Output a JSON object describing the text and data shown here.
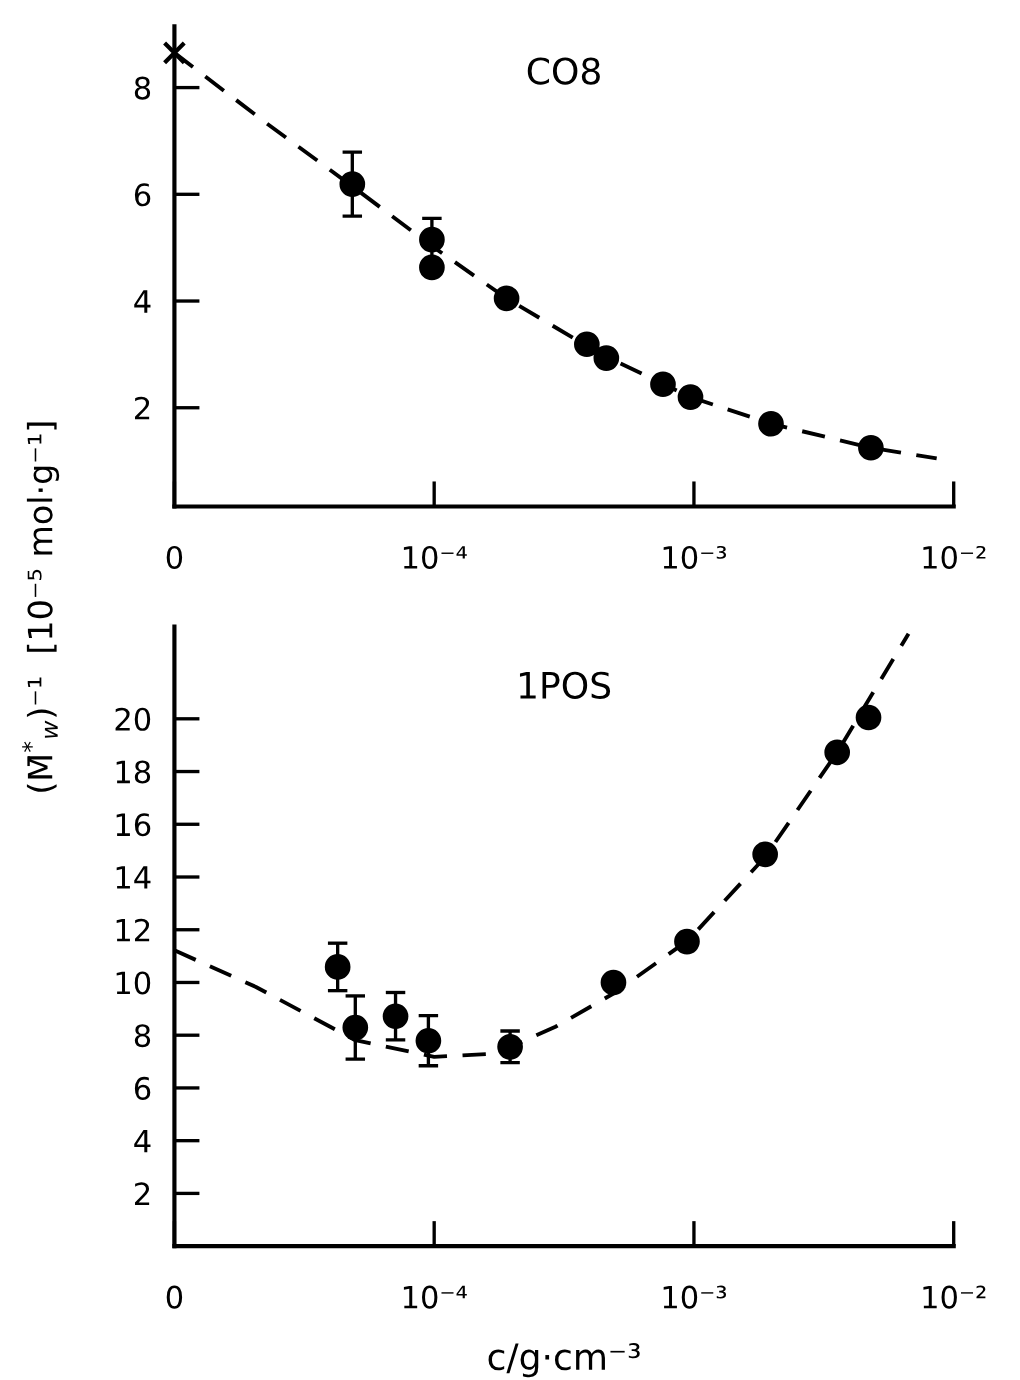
{
  "chart_data": [
    {
      "type": "scatter",
      "title": "CO8",
      "ylabel": "(M̄$^{*}$$_{w}$)⁻¹  [10⁻⁵ mol·g⁻¹]",
      "log": "x",
      "xlim": [
        1e-05,
        0.01
      ],
      "xticks": [
        {
          "value": 1e-05,
          "label": "0"
        },
        {
          "value": 0.0001,
          "label": "10⁻⁴"
        },
        {
          "value": 0.001,
          "label": "10⁻³"
        },
        {
          "value": 0.01,
          "label": "10⁻²"
        }
      ],
      "ylim": [
        0.15,
        9.15
      ],
      "yticks": [
        2,
        4,
        6,
        8
      ],
      "series": [
        {
          "color": "#000000",
          "marker": "circle",
          "x": [
            4.84e-05,
            9.8e-05,
            9.8e-05,
            0.00019,
            0.000387,
            0.00046,
            0.00076,
            0.00097,
            0.00198,
            0.0048
          ],
          "values": [
            6.19,
            5.15,
            4.63,
            4.05,
            3.19,
            2.93,
            2.44,
            2.2,
            1.7,
            1.25
          ],
          "errors": [
            0.6,
            0.4,
            null,
            null,
            null,
            null,
            null,
            null,
            null,
            null
          ]
        },
        {
          "type": "line",
          "color": "#000000",
          "marker": "none",
          "line_style": "dashed",
          "x": [
            1e-05,
            2.25e-05,
            4.84e-05,
            9.8e-05,
            0.00019,
            0.000428,
            0.00097,
            0.00198,
            0.0048,
            0.0086
          ],
          "values": [
            8.65,
            7.34,
            6.15,
            5.03,
            4.05,
            3.03,
            2.2,
            1.7,
            1.25,
            1.05
          ]
        },
        {
          "color": "#000000",
          "marker": "cross",
          "x": [
            1e-05
          ],
          "values": [
            8.65
          ]
        }
      ]
    },
    {
      "type": "scatter",
      "title": "1POS",
      "xlabel": "c/g·cm⁻³",
      "log": "x",
      "xlim": [
        1e-05,
        0.01
      ],
      "xticks": [
        {
          "value": 1e-05,
          "label": "0"
        },
        {
          "value": 0.0001,
          "label": "10⁻⁴"
        },
        {
          "value": 0.001,
          "label": "10⁻³"
        },
        {
          "value": 0.01,
          "label": "10⁻²"
        }
      ],
      "ylim": [
        0,
        23.5
      ],
      "yticks": [
        2,
        4,
        6,
        8,
        10,
        12,
        14,
        16,
        18,
        20
      ],
      "series": [
        {
          "color": "#000000",
          "marker": "circle",
          "x": [
            4.25e-05,
            4.97e-05,
            7.1e-05,
            9.5e-05,
            0.000196,
            0.00049,
            0.00094,
            0.00188,
            0.00356,
            0.0047
          ],
          "values": [
            10.59,
            8.29,
            8.72,
            7.79,
            7.56,
            10.0,
            11.55,
            14.86,
            18.73,
            20.05
          ],
          "errors": [
            0.9,
            1.2,
            0.9,
            0.95,
            0.6,
            null,
            null,
            null,
            null,
            null
          ]
        },
        {
          "type": "line",
          "color": "#000000",
          "marker": "none",
          "line_style": "dashed",
          "x": [
            1e-05,
            2.06e-05,
            4.97e-05,
            0.0001,
            0.000172,
            0.000293,
            0.00049,
            0.00095,
            0.00188,
            0.00356,
            0.0067
          ],
          "values": [
            11.22,
            9.83,
            7.81,
            7.18,
            7.3,
            8.32,
            9.58,
            11.6,
            14.76,
            18.73,
            23.23
          ]
        }
      ]
    }
  ]
}
